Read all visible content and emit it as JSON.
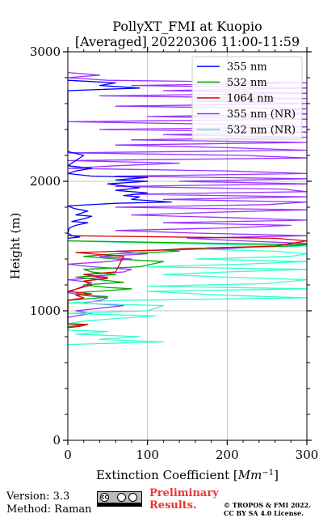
{
  "chart_data": {
    "type": "line",
    "title_line1": "PollyXT_FMI at Kuopio",
    "title_line2": "[Averaged] 20220306 11:00-11:59",
    "xlabel": "Extinction Coefficient [$Mm^{-1}$]",
    "ylabel": "Height (m)",
    "xlim": [
      0,
      300
    ],
    "ylim": [
      0,
      3000
    ],
    "xticks": [
      "0",
      "100",
      "200",
      "300"
    ],
    "yticks": [
      "0",
      "1000",
      "2000",
      "3000"
    ],
    "grid": true,
    "legend_position": "top-right",
    "series": [
      {
        "name": "355 nm",
        "color": "#0000ff",
        "points": [
          [
            0,
            1560
          ],
          [
            15,
            1570
          ],
          [
            5,
            1580
          ],
          [
            0,
            1600
          ],
          [
            2,
            1640
          ],
          [
            10,
            1660
          ],
          [
            25,
            1680
          ],
          [
            5,
            1690
          ],
          [
            20,
            1710
          ],
          [
            30,
            1730
          ],
          [
            10,
            1740
          ],
          [
            20,
            1760
          ],
          [
            25,
            1770
          ],
          [
            8,
            1790
          ],
          [
            0,
            1810
          ],
          [
            60,
            1830
          ],
          [
            130,
            1840
          ],
          [
            80,
            1860
          ],
          [
            90,
            1880
          ],
          [
            70,
            1890
          ],
          [
            100,
            1910
          ],
          [
            60,
            1930
          ],
          [
            90,
            1950
          ],
          [
            50,
            1980
          ],
          [
            100,
            2000
          ],
          [
            60,
            2010
          ],
          [
            100,
            2030
          ],
          [
            30,
            2040
          ],
          [
            0,
            2060
          ],
          [
            10,
            2080
          ],
          [
            30,
            2100
          ],
          [
            0,
            2120
          ],
          [
            20,
            2200
          ],
          [
            0,
            2230
          ],
          [
            0,
            2700
          ],
          [
            90,
            2720
          ],
          [
            40,
            2740
          ],
          [
            60,
            2760
          ],
          [
            0,
            2780
          ]
        ]
      },
      {
        "name": "532 nm",
        "color": "#00aa00",
        "points": [
          [
            0,
            880
          ],
          [
            20,
            890
          ],
          [
            0,
            900
          ],
          [
            0,
            1080
          ],
          [
            40,
            1100
          ],
          [
            50,
            1110
          ],
          [
            20,
            1120
          ],
          [
            10,
            1140
          ],
          [
            60,
            1160
          ],
          [
            80,
            1170
          ],
          [
            50,
            1180
          ],
          [
            20,
            1200
          ],
          [
            70,
            1220
          ],
          [
            40,
            1240
          ],
          [
            10,
            1260
          ],
          [
            60,
            1280
          ],
          [
            30,
            1300
          ],
          [
            20,
            1320
          ],
          [
            90,
            1340
          ],
          [
            120,
            1380
          ],
          [
            60,
            1400
          ],
          [
            20,
            1420
          ],
          [
            60,
            1440
          ],
          [
            140,
            1460
          ],
          [
            120,
            1470
          ],
          [
            200,
            1490
          ],
          [
            280,
            1500
          ],
          [
            300,
            1510
          ],
          [
            200,
            1520
          ],
          [
            0,
            1540
          ]
        ]
      },
      {
        "name": "1064 nm",
        "color": "#dd0000",
        "points": [
          [
            0,
            870
          ],
          [
            15,
            880
          ],
          [
            25,
            895
          ],
          [
            0,
            900
          ],
          [
            0,
            1080
          ],
          [
            20,
            1100
          ],
          [
            10,
            1120
          ],
          [
            30,
            1130
          ],
          [
            0,
            1150
          ],
          [
            30,
            1200
          ],
          [
            20,
            1230
          ],
          [
            50,
            1250
          ],
          [
            20,
            1280
          ],
          [
            60,
            1300
          ],
          [
            70,
            1420
          ],
          [
            10,
            1450
          ],
          [
            120,
            1470
          ],
          [
            150,
            1480
          ],
          [
            260,
            1500
          ],
          [
            300,
            1540
          ],
          [
            260,
            1560
          ],
          [
            0,
            1580
          ]
        ]
      },
      {
        "name": "355 nm (NR)",
        "color": "#9933ff",
        "points": [
          [
            0,
            950
          ],
          [
            30,
            980
          ],
          [
            10,
            1000
          ],
          [
            40,
            1020
          ],
          [
            70,
            1040
          ],
          [
            20,
            1060
          ],
          [
            40,
            1080
          ],
          [
            50,
            1100
          ],
          [
            20,
            1120
          ],
          [
            0,
            1140
          ],
          [
            30,
            1220
          ],
          [
            0,
            1240
          ],
          [
            50,
            1260
          ],
          [
            20,
            1280
          ],
          [
            70,
            1300
          ],
          [
            80,
            1320
          ],
          [
            30,
            1340
          ],
          [
            0,
            1360
          ],
          [
            50,
            1380
          ],
          [
            80,
            1400
          ],
          [
            40,
            1420
          ],
          [
            100,
            1440
          ],
          [
            60,
            1460
          ],
          [
            200,
            1480
          ],
          [
            260,
            1500
          ],
          [
            300,
            1520
          ],
          [
            220,
            1540
          ],
          [
            150,
            1560
          ],
          [
            300,
            1580
          ],
          [
            160,
            1600
          ],
          [
            60,
            1620
          ],
          [
            200,
            1640
          ],
          [
            280,
            1660
          ],
          [
            120,
            1680
          ],
          [
            300,
            1700
          ],
          [
            200,
            1720
          ],
          [
            80,
            1740
          ],
          [
            180,
            1760
          ],
          [
            300,
            1780
          ],
          [
            60,
            1800
          ],
          [
            250,
            1820
          ],
          [
            300,
            1840
          ],
          [
            120,
            1860
          ],
          [
            300,
            1880
          ],
          [
            80,
            1900
          ],
          [
            300,
            1920
          ],
          [
            270,
            1940
          ],
          [
            60,
            1960
          ],
          [
            300,
            1980
          ],
          [
            140,
            2000
          ],
          [
            300,
            2020
          ],
          [
            60,
            2040
          ],
          [
            300,
            2060
          ],
          [
            200,
            2080
          ],
          [
            0,
            2100
          ],
          [
            60,
            2120
          ],
          [
            140,
            2140
          ],
          [
            0,
            2160
          ],
          [
            300,
            2180
          ],
          [
            220,
            2200
          ],
          [
            0,
            2220
          ],
          [
            300,
            2240
          ],
          [
            200,
            2260
          ],
          [
            60,
            2280
          ],
          [
            300,
            2300
          ],
          [
            80,
            2320
          ],
          [
            300,
            2340
          ],
          [
            120,
            2360
          ],
          [
            300,
            2380
          ],
          [
            40,
            2400
          ],
          [
            300,
            2420
          ],
          [
            200,
            2440
          ],
          [
            0,
            2460
          ],
          [
            300,
            2480
          ],
          [
            100,
            2500
          ],
          [
            300,
            2520
          ],
          [
            260,
            2540
          ],
          [
            300,
            2560
          ],
          [
            60,
            2580
          ],
          [
            300,
            2600
          ],
          [
            160,
            2620
          ],
          [
            300,
            2640
          ],
          [
            40,
            2660
          ],
          [
            300,
            2680
          ],
          [
            120,
            2700
          ],
          [
            300,
            2720
          ],
          [
            80,
            2740
          ],
          [
            300,
            2760
          ],
          [
            50,
            2780
          ],
          [
            0,
            2800
          ],
          [
            40,
            2820
          ],
          [
            0,
            2840
          ]
        ]
      },
      {
        "name": "532 nm (NR)",
        "color": "#33ffcc",
        "points": [
          [
            0,
            740
          ],
          [
            120,
            760
          ],
          [
            40,
            780
          ],
          [
            90,
            800
          ],
          [
            10,
            820
          ],
          [
            50,
            840
          ],
          [
            0,
            850
          ],
          [
            0,
            900
          ],
          [
            20,
            920
          ],
          [
            60,
            940
          ],
          [
            110,
            960
          ],
          [
            0,
            980
          ],
          [
            100,
            1000
          ],
          [
            120,
            1040
          ],
          [
            0,
            1060
          ],
          [
            60,
            1080
          ],
          [
            300,
            1100
          ],
          [
            200,
            1120
          ],
          [
            100,
            1150
          ],
          [
            300,
            1170
          ],
          [
            100,
            1190
          ],
          [
            250,
            1210
          ],
          [
            300,
            1240
          ],
          [
            200,
            1260
          ],
          [
            120,
            1280
          ],
          [
            200,
            1300
          ],
          [
            300,
            1320
          ],
          [
            100,
            1340
          ],
          [
            220,
            1360
          ],
          [
            300,
            1380
          ],
          [
            160,
            1400
          ],
          [
            280,
            1420
          ],
          [
            300,
            1440
          ],
          [
            260,
            1460
          ],
          [
            140,
            1480
          ],
          [
            300,
            1500
          ],
          [
            120,
            1520
          ],
          [
            0,
            1540
          ]
        ]
      }
    ]
  },
  "footer": {
    "version": "Version: 3.3",
    "method": "Method: Raman",
    "cc_mark": "cc",
    "preliminary_line1": "Preliminary",
    "preliminary_line2": "Results.",
    "copyright_line1": "© TROPOS & FMI 2022.",
    "copyright_line2": "CC BY SA 4.0 License."
  }
}
